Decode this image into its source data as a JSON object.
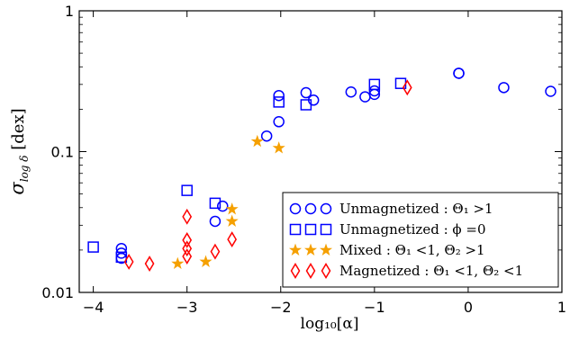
{
  "chart_data": {
    "type": "scatter",
    "xlabel": "log₁₀[α]",
    "ylabel": "σ",
    "ylabel_sub": "log δ",
    "ylabel_unit": "[dex]",
    "xlim": [
      -4.15,
      1.0
    ],
    "ylim": [
      0.01,
      1
    ],
    "yscale": "log",
    "x_ticks": [
      -4,
      -3,
      -2,
      -1,
      0,
      1
    ],
    "x_tick_labels": [
      "−4",
      "−3",
      "−2",
      "−1",
      "0",
      "1"
    ],
    "y_ticks": [
      0.01,
      0.1,
      1
    ],
    "y_tick_labels": [
      "0.01",
      "0.1",
      "1"
    ],
    "legend_position": "lower-right",
    "series": [
      {
        "name": "Unmagnetized : Θ₁ >1",
        "marker": "circle",
        "color": "#0000ff",
        "points": [
          [
            -3.7,
            0.0205
          ],
          [
            -3.7,
            0.019
          ],
          [
            -3.7,
            0.0175
          ],
          [
            -2.7,
            0.032
          ],
          [
            -2.62,
            0.041
          ],
          [
            -2.15,
            0.129
          ],
          [
            -2.02,
            0.163
          ],
          [
            -2.02,
            0.25
          ],
          [
            -1.73,
            0.262
          ],
          [
            -1.65,
            0.232
          ],
          [
            -1.25,
            0.265
          ],
          [
            -1.1,
            0.245
          ],
          [
            -1.0,
            0.255
          ],
          [
            -1.0,
            0.27
          ],
          [
            -0.1,
            0.36
          ],
          [
            -0.1,
            0.36
          ],
          [
            0.38,
            0.285
          ],
          [
            0.88,
            0.268
          ]
        ]
      },
      {
        "name": "Unmagnetized : ϕ =0",
        "marker": "square",
        "color": "#0000ff",
        "points": [
          [
            -4.0,
            0.021
          ],
          [
            -3.7,
            0.0178
          ],
          [
            -3.0,
            0.053
          ],
          [
            -2.7,
            0.043
          ],
          [
            -2.02,
            0.225
          ],
          [
            -1.73,
            0.215
          ],
          [
            -1.0,
            0.3
          ],
          [
            -0.72,
            0.305
          ]
        ]
      },
      {
        "name": "Mixed : Θ₁ <1, Θ₂ >1",
        "marker": "star",
        "color": "#f5a000",
        "points": [
          [
            -3.1,
            0.016
          ],
          [
            -2.8,
            0.0165
          ],
          [
            -2.52,
            0.032
          ],
          [
            -2.52,
            0.039
          ],
          [
            -2.25,
            0.118
          ],
          [
            -2.02,
            0.106
          ]
        ]
      },
      {
        "name": "Magnetized : Θ₁ <1, Θ₂ <1",
        "marker": "diamond",
        "color": "#ff0000",
        "points": [
          [
            -3.62,
            0.0165
          ],
          [
            -3.4,
            0.016
          ],
          [
            -3.0,
            0.018
          ],
          [
            -3.0,
            0.0205
          ],
          [
            -3.0,
            0.0235
          ],
          [
            -3.0,
            0.0345
          ],
          [
            -2.7,
            0.0195
          ],
          [
            -2.52,
            0.0238
          ],
          [
            -0.65,
            0.285
          ]
        ]
      }
    ]
  }
}
